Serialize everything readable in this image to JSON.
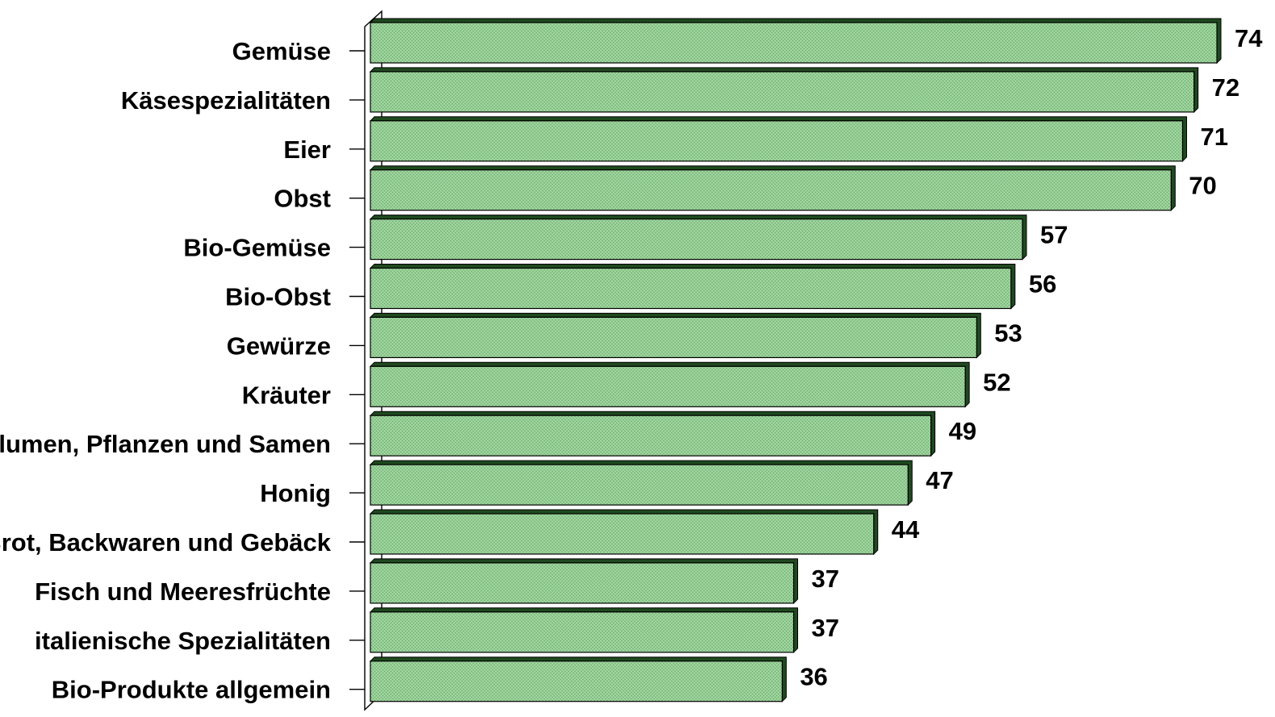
{
  "chart_data": {
    "type": "bar",
    "orientation": "horizontal",
    "title": "",
    "xlabel": "",
    "ylabel": "",
    "xlim": [
      0,
      74
    ],
    "grid": false,
    "legend": "none",
    "bar_color": "#8fca8f",
    "bar_shadow_color": "#1f4a1f",
    "categories": [
      "Gemüse",
      "Käsespezialitäten",
      "Eier",
      "Obst",
      "Bio-Gemüse",
      "Bio-Obst",
      "Gewürze",
      "Kräuter",
      "Blumen, Pflanzen und Samen",
      "Honig",
      "Brot, Backwaren und Gebäck",
      "Fisch und Meeresfrüchte",
      "italienische Spezialitäten",
      "Bio-Produkte allgemein"
    ],
    "values": [
      74,
      72,
      71,
      70,
      57,
      56,
      53,
      52,
      49,
      47,
      44,
      37,
      37,
      36
    ],
    "value_labels": [
      "74",
      "72",
      "71",
      "70",
      "57",
      "56",
      "53",
      "52",
      "49",
      "47",
      "44",
      "37",
      "37",
      "36"
    ]
  }
}
